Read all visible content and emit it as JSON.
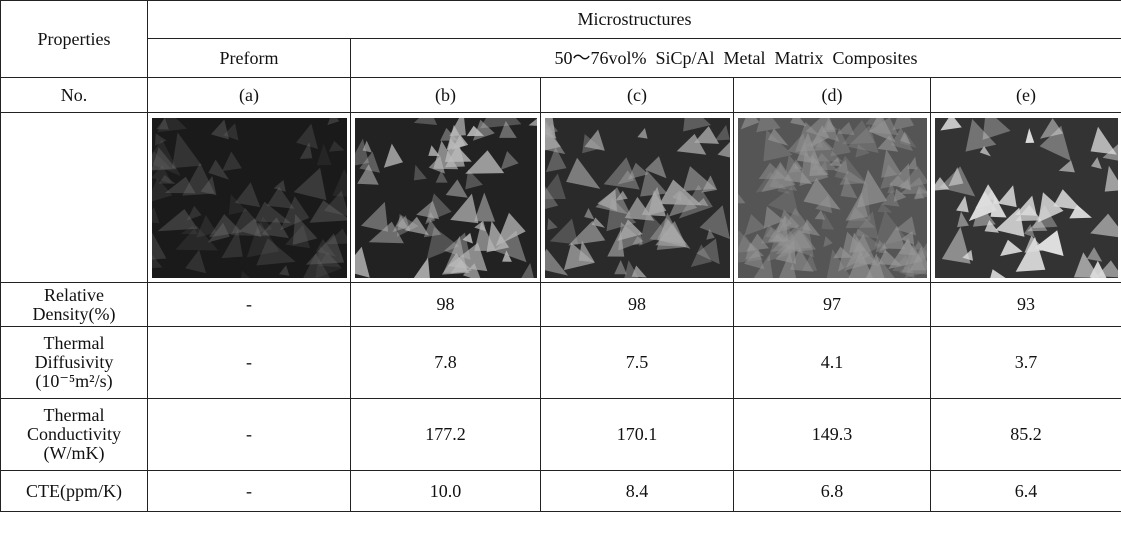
{
  "header": {
    "properties": "Properties",
    "microstructures": "Microstructures",
    "preform": "Preform",
    "composites": "50～76vol%  SiCp/Al  Metal  Matrix  Composites"
  },
  "table": {
    "no_label": "No.",
    "samples": [
      "(a)",
      "(b)",
      "(c)",
      "(d)",
      "(e)"
    ],
    "rows": [
      {
        "label": [
          "Relative",
          "Density(%)"
        ],
        "values": [
          "-",
          "98",
          "98",
          "97",
          "93"
        ]
      },
      {
        "label": [
          "Thermal",
          "Diffusivity",
          "(10⁻⁵m²/s)"
        ],
        "values": [
          "-",
          "7.8",
          "7.5",
          "4.1",
          "3.7"
        ]
      },
      {
        "label": [
          "Thermal",
          "Conductivity",
          "(W/mK)"
        ],
        "values": [
          "-",
          "177.2",
          "170.1",
          "149.3",
          "85.2"
        ]
      },
      {
        "label": [
          "CTE(ppm/K)"
        ],
        "values": [
          "-",
          "10.0",
          "8.4",
          "6.8",
          "6.4"
        ]
      }
    ]
  }
}
